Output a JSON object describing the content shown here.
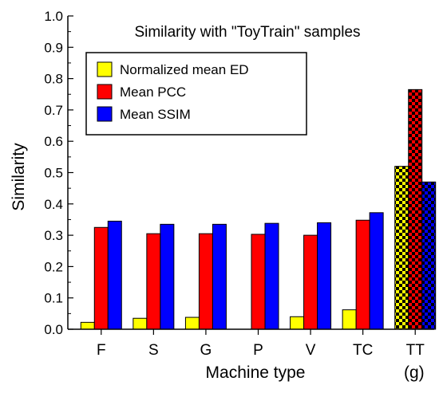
{
  "chart_data": {
    "type": "bar",
    "title": "Similarity with \"ToyTrain\" samples",
    "xlabel": "Machine type",
    "ylabel": "Similarity",
    "panel_label": "(g)",
    "categories": [
      "F",
      "S",
      "G",
      "P",
      "V",
      "TC",
      "TT"
    ],
    "ylim": [
      0,
      1.0
    ],
    "yticks": [
      "0.0",
      "0.1",
      "0.2",
      "0.3",
      "0.4",
      "0.5",
      "0.6",
      "0.7",
      "0.8",
      "0.9",
      "1.0"
    ],
    "series": [
      {
        "name": "Normalized mean ED",
        "color": "#ffff00",
        "values": [
          0.022,
          0.035,
          0.038,
          0.0,
          0.04,
          0.062,
          0.52
        ]
      },
      {
        "name": "Mean PCC",
        "color": "#ff0000",
        "values": [
          0.325,
          0.305,
          0.305,
          0.303,
          0.3,
          0.348,
          0.765
        ]
      },
      {
        "name": "Mean SSIM",
        "color": "#0000ff",
        "values": [
          0.345,
          0.335,
          0.335,
          0.338,
          0.34,
          0.372,
          0.47
        ]
      }
    ],
    "highlighted_category": "TT",
    "highlight_pattern": "checkerboard",
    "legend_position": "top-left",
    "grid": false
  }
}
